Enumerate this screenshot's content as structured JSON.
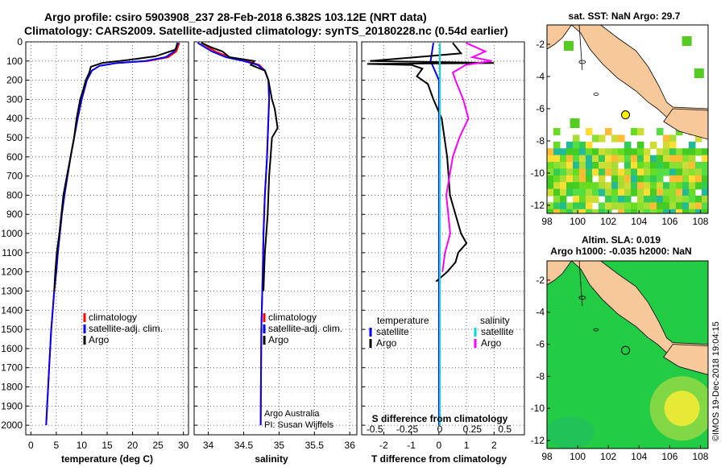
{
  "header": {
    "line1": "Argo profile: csiro 5903908_237 28-Feb-2018 6.382S 103.12E (NRT data)",
    "line2": "Climatology: CARS2009. Satellite-adjusted climatology: synTS_20180228.nc (0.54d earlier)"
  },
  "colors": {
    "climatology": "#ff0000",
    "satellite": "#0000ff",
    "argo": "#000000",
    "satellite_s": "#00dddd",
    "argo_s": "#ff00ff",
    "land": "#f6c89a",
    "ocean_sst": "#44dd22",
    "ocean_sla": "#22cc44"
  },
  "chart_data": [
    {
      "type": "line",
      "id": "temperature",
      "xlabel": "temperature (deg C)",
      "ylabel": "",
      "xlim": [
        -1,
        31
      ],
      "ylim": [
        0,
        2050
      ],
      "y_inverted": true,
      "xticks": [
        "0",
        "5",
        "10",
        "15",
        "20",
        "25",
        "30"
      ],
      "yticks": [
        "0",
        "100",
        "200",
        "300",
        "400",
        "500",
        "600",
        "700",
        "800",
        "900",
        "1000",
        "1100",
        "1200",
        "1300",
        "1400",
        "1500",
        "1600",
        "1700",
        "1800",
        "1900",
        "2000"
      ],
      "legend": [
        "climatology",
        "satellite-adj. clim.",
        "Argo"
      ],
      "series": [
        {
          "name": "climatology",
          "depth": [
            5,
            50,
            80,
            100,
            110,
            125,
            150,
            200,
            300,
            400,
            500,
            600,
            700,
            800,
            900,
            1000,
            1100,
            1200,
            1300,
            1400,
            1500,
            1600,
            1700,
            1800,
            1900,
            2000
          ],
          "values": [
            29.2,
            28.6,
            27.0,
            23.0,
            17.0,
            13.5,
            12.0,
            11.0,
            10.0,
            9.2,
            8.5,
            7.8,
            7.2,
            6.6,
            6.1,
            5.7,
            5.3,
            5.0,
            4.6,
            4.3,
            4.0,
            3.8,
            3.6,
            3.4,
            3.2,
            3.0
          ]
        },
        {
          "name": "satellite-adj. clim.",
          "depth": [
            5,
            50,
            80,
            100,
            110,
            125,
            150,
            200,
            300,
            400,
            500,
            600,
            700,
            800,
            900,
            1000,
            1100,
            1200,
            1300,
            1400,
            1500,
            1600,
            1700,
            1800,
            1900,
            2000
          ],
          "values": [
            29.0,
            28.2,
            26.5,
            22.5,
            17.0,
            13.5,
            12.0,
            11.0,
            10.0,
            9.2,
            8.5,
            7.8,
            7.2,
            6.6,
            6.1,
            5.7,
            5.3,
            5.0,
            4.6,
            4.3,
            4.0,
            3.8,
            3.6,
            3.4,
            3.2,
            3.0
          ]
        },
        {
          "name": "Argo",
          "depth": [
            5,
            40,
            75,
            95,
            110,
            130,
            160,
            200,
            250,
            300,
            400,
            500,
            600,
            700,
            800,
            900,
            1000,
            1100,
            1200,
            1300
          ],
          "values": [
            28.8,
            28.5,
            24.5,
            19.0,
            14.0,
            11.8,
            11.5,
            10.8,
            10.3,
            9.7,
            9.0,
            8.5,
            7.8,
            7.1,
            6.4,
            6.0,
            5.6,
            5.1,
            4.8,
            4.6
          ]
        }
      ]
    },
    {
      "type": "line",
      "id": "salinity",
      "xlabel": "salinity",
      "xlim": [
        33.8,
        36.1
      ],
      "ylim": [
        0,
        2050
      ],
      "y_inverted": true,
      "xticks": [
        "34",
        "34.5",
        "35",
        "35.5",
        "36"
      ],
      "legend": [
        "climatology",
        "satellite-adj. clim.",
        "Argo"
      ],
      "credit_line1": "Argo Australia",
      "credit_line2": "PI: Susan Wijffels",
      "series": [
        {
          "name": "climatology",
          "depth": [
            5,
            50,
            80,
            100,
            120,
            150,
            200,
            300,
            400,
            600,
            800,
            1000,
            1200,
            1500,
            2000
          ],
          "values": [
            33.9,
            34.1,
            34.3,
            34.55,
            34.72,
            34.8,
            34.85,
            34.86,
            34.85,
            34.83,
            34.8,
            34.78,
            34.77,
            34.75,
            34.74
          ]
        },
        {
          "name": "satellite-adj. clim.",
          "depth": [
            5,
            50,
            80,
            100,
            120,
            150,
            200,
            300,
            400,
            600,
            800,
            1000,
            1200,
            1500,
            2000
          ],
          "values": [
            33.85,
            34.05,
            34.25,
            34.5,
            34.7,
            34.8,
            34.85,
            34.86,
            34.85,
            34.83,
            34.8,
            34.78,
            34.77,
            34.75,
            34.74
          ]
        },
        {
          "name": "Argo",
          "depth": [
            5,
            30,
            50,
            80,
            100,
            120,
            150,
            200,
            300,
            350,
            400,
            450,
            500,
            600,
            700,
            800,
            900,
            1000,
            1100,
            1200,
            1300
          ],
          "values": [
            33.9,
            34.05,
            34.2,
            34.3,
            34.65,
            34.6,
            34.8,
            34.85,
            34.9,
            34.94,
            34.96,
            34.98,
            34.9,
            34.88,
            34.86,
            34.85,
            34.84,
            34.82,
            34.8,
            34.79,
            34.78
          ]
        }
      ]
    },
    {
      "type": "line",
      "id": "differences",
      "xlabel": "T difference from climatology",
      "top_xlabel": "S difference from climatology",
      "xlim": [
        -2.8,
        3.1
      ],
      "ylim": [
        0,
        2050
      ],
      "y_inverted": true,
      "xticks": [
        "-2",
        "-1",
        "0",
        "1",
        "2"
      ],
      "top_xticks": [
        "-0.5",
        "-0.25",
        "0",
        "0.25",
        "0.5"
      ],
      "legend_left_title": "temperature",
      "legend_right_title": "salinity",
      "legend": [
        "satellite",
        "Argo",
        "satellite",
        "Argo"
      ],
      "series": [
        {
          "name": "T satellite",
          "depth": [
            5,
            100,
            200,
            400,
            800,
            1200,
            2000
          ],
          "values": [
            -0.2,
            -0.3,
            0.0,
            0.0,
            0.0,
            0.0,
            0.0
          ]
        },
        {
          "name": "T Argo",
          "depth": [
            5,
            60,
            100,
            110,
            115,
            120,
            140,
            180,
            220,
            300,
            400,
            500,
            600,
            800,
            900,
            1000,
            1050,
            1100,
            1150,
            1200,
            1250
          ],
          "values": [
            0.5,
            0.8,
            -2.5,
            2.0,
            -2.6,
            -1.0,
            -0.6,
            -0.8,
            -0.4,
            -0.2,
            0.1,
            0.2,
            0.3,
            0.4,
            0.6,
            0.8,
            1.0,
            0.7,
            0.6,
            0.3,
            -0.1
          ]
        },
        {
          "name": "S satellite",
          "depth": [
            5,
            200,
            500,
            1000,
            1500,
            2000
          ],
          "values": [
            0.0,
            0.0,
            0.0,
            0.0,
            0.0,
            0.0
          ]
        },
        {
          "name": "S Argo",
          "depth": [
            5,
            50,
            80,
            100,
            120,
            160,
            200,
            300,
            350,
            400,
            500,
            600,
            800,
            1000,
            1100,
            1200
          ],
          "values": [
            0.2,
            0.35,
            0.25,
            0.4,
            0.2,
            0.1,
            0.12,
            0.18,
            0.2,
            0.22,
            0.15,
            0.1,
            0.05,
            0.08,
            0.04,
            0.02
          ]
        }
      ]
    },
    {
      "type": "heatmap",
      "id": "sst_map",
      "title": "sat. SST: NaN Argo: 29.7",
      "xticks": [
        "98",
        "100",
        "102",
        "104",
        "106",
        "108"
      ],
      "yticks": [
        "-2",
        "-4",
        "-6",
        "-8",
        "-10",
        "-12"
      ],
      "xlim": [
        98,
        108.5
      ],
      "ylim": [
        -12.5,
        -0.8
      ],
      "profile_lon": 103.12,
      "profile_lat": -6.382
    },
    {
      "type": "heatmap",
      "id": "sla_map",
      "title_line1": "Altim. SLA: 0.019",
      "title_line2": "Argo h1000: -0.035 h2000: NaN",
      "xticks": [
        "98",
        "100",
        "102",
        "104",
        "106",
        "108"
      ],
      "yticks": [
        "-2",
        "-4",
        "-6",
        "-8",
        "-10",
        "-12"
      ],
      "xlim": [
        98,
        108.5
      ],
      "ylim": [
        -12.5,
        -0.8
      ],
      "profile_lon": 103.12,
      "profile_lat": -6.382,
      "stamp": "©IMOS 19-Dec-2018 19:04:15"
    }
  ]
}
